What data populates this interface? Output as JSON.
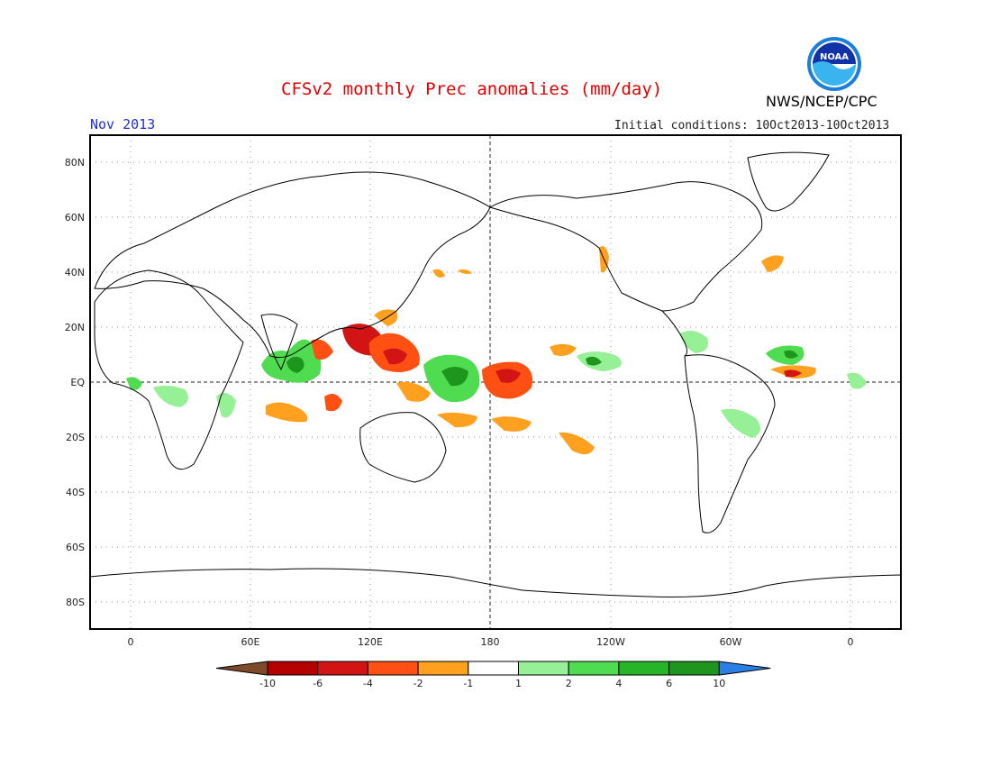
{
  "header": {
    "title": "CFSv2 monthly Prec anomalies (mm/day)",
    "month": "Nov 2013",
    "initial_conditions": "Initial conditions: 10Oct2013-10Oct2013",
    "agency": "NWS/NCEP/CPC",
    "logo_text": "NOAA"
  },
  "axes": {
    "lat_labels": [
      "80N",
      "60N",
      "40N",
      "20N",
      "EQ",
      "20S",
      "40S",
      "60S",
      "80S"
    ],
    "lon_labels": [
      "0",
      "60E",
      "120E",
      "180",
      "120W",
      "60W",
      "0"
    ]
  },
  "colorbar": {
    "labels": [
      "-10",
      "-6",
      "-4",
      "-2",
      "-1",
      "1",
      "2",
      "4",
      "6",
      "10"
    ],
    "colors": [
      "#7f4a2a",
      "#b40000",
      "#d21414",
      "#ff5014",
      "#ffa01e",
      "#ffffff",
      "#96f096",
      "#50dc50",
      "#28b428",
      "#1e961e",
      "#2a7fe6"
    ]
  },
  "colors": {
    "dry_strong": "#d21414",
    "dry_moderate": "#ff5014",
    "dry_weak": "#ffa01e",
    "wet_weak": "#96f096",
    "wet_moderate": "#50dc50",
    "wet_strong": "#1e961e"
  }
}
